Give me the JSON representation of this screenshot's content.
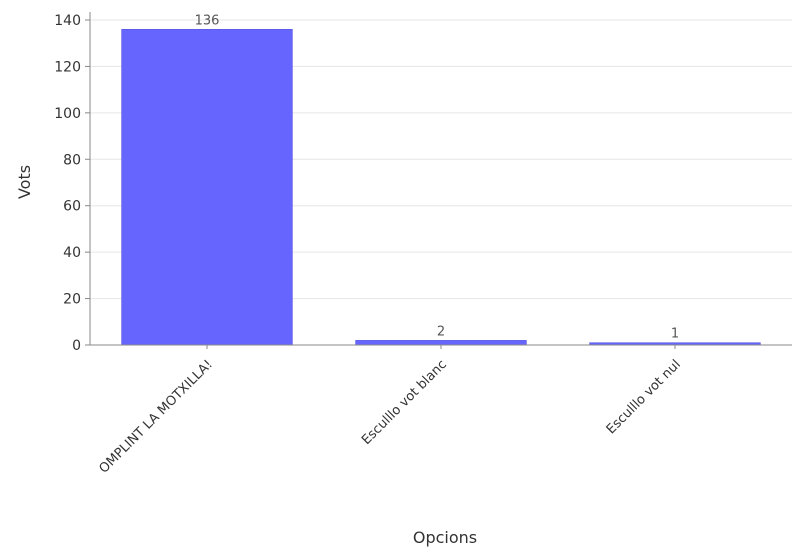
{
  "chart_data": {
    "type": "bar",
    "title": "",
    "xlabel": "Opcions",
    "ylabel": "Vots",
    "categories": [
      "OMPLINT LA MOTXILLA!",
      "Esculllo vot blanc",
      "Esculllo vot nul"
    ],
    "values": [
      136,
      2,
      1
    ],
    "value_labels": [
      "136",
      "2",
      "1"
    ],
    "ylim": [
      0,
      140
    ],
    "yticks": [
      "0",
      "20",
      "40",
      "60",
      "80",
      "100",
      "120",
      "140"
    ],
    "grid": true,
    "legend": "none",
    "colors": {
      "bar": "#6666ff",
      "bar_edge": "#4b4bd9",
      "grid": "#e6e6e6",
      "axis": "#888888"
    }
  }
}
